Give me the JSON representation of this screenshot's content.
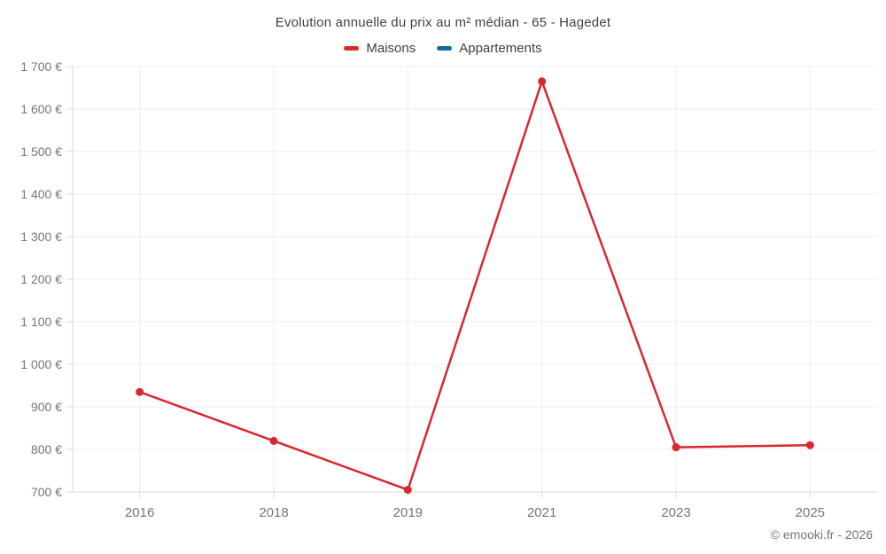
{
  "title": "Evolution annuelle du prix au m² médian - 65 - Hagedet",
  "legend": {
    "items": [
      {
        "label": "Maisons",
        "color": "#d7282f"
      },
      {
        "label": "Appartements",
        "color": "#1769a0"
      }
    ]
  },
  "footer": "© emooki.fr - 2026",
  "colors": {
    "grid": "#ececec",
    "axis": "#d9d9d9",
    "tick_text": "#757575",
    "title_text": "#3f3f3f"
  },
  "chart_data": {
    "type": "line",
    "title": "Evolution annuelle du prix au m² médian - 65 - Hagedet",
    "categories": [
      "2016",
      "2018",
      "2019",
      "2021",
      "2023",
      "2025"
    ],
    "series": [
      {
        "name": "Maisons",
        "color": "#d7282f",
        "values": [
          935,
          820,
          705,
          1665,
          805,
          810
        ]
      },
      {
        "name": "Appartements",
        "color": "#1769a0",
        "values": []
      }
    ],
    "xlabel": "",
    "ylabel": "",
    "ylim": [
      700,
      1700
    ],
    "y_ticks": [
      700,
      800,
      900,
      1000,
      1100,
      1200,
      1300,
      1400,
      1500,
      1600,
      1700
    ],
    "y_tick_labels": [
      "700 €",
      "800 €",
      "900 €",
      "1 000 €",
      "1 100 €",
      "1 200 €",
      "1 300 €",
      "1 400 €",
      "1 500 €",
      "1 600 €",
      "1 700 €"
    ],
    "grid": true,
    "legend_position": "top"
  }
}
